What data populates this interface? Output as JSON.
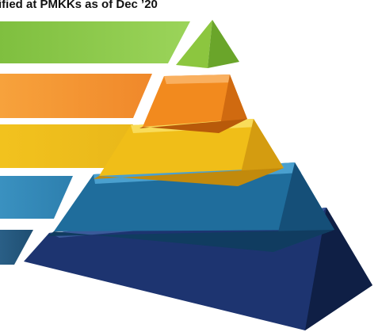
{
  "header": {
    "title": "ified at PMKKs as of Dec ’20"
  }
}
